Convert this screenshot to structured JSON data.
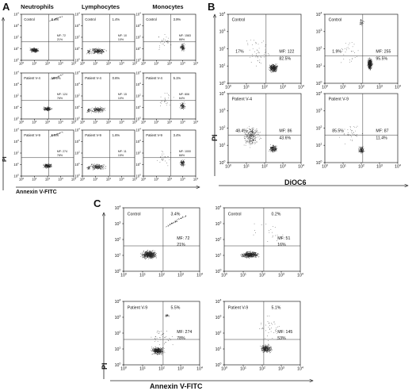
{
  "figure": {
    "panel_letters": [
      "A",
      "B",
      "C"
    ],
    "column_headers": [
      "Neutrophils",
      "Lymphocytes",
      "Monocytes"
    ],
    "axis": {
      "pi": "PI",
      "annexin": "Annexin V-FITC",
      "dioc6": "DiOC6",
      "exponents": [
        "0",
        "1",
        "2",
        "3",
        "4"
      ]
    },
    "A": {
      "rows": [
        {
          "label": "Control",
          "cells": [
            {
              "pct": "3.4%",
              "mf1": "MF: 72",
              "mf2": "21%"
            },
            {
              "pct": "1.4%",
              "mf1": "MF: 10",
              "mf2": "10%"
            },
            {
              "pct": "3.9%",
              "mf1": "MF: 1583",
              "mf2": "88%"
            }
          ]
        },
        {
          "label": "Patient V-4",
          "cells": [
            {
              "pct": "10.5%",
              "mf1": "MF: 124",
              "mf2": "76%"
            },
            {
              "pct": "0.6%",
              "mf1": "MF: 15",
              "mf2": "10%"
            },
            {
              "pct": "5.1%",
              "mf1": "MF: 806",
              "mf2": "64%"
            }
          ]
        },
        {
          "label": "Patient V-9",
          "cells": [
            {
              "pct": "5.5%",
              "mf1": "MF: 274",
              "mf2": "78%"
            },
            {
              "pct": "1.6%",
              "mf1": "MF: 11",
              "mf2": "15%"
            },
            {
              "pct": "3.4%",
              "mf1": "MF: 1000",
              "mf2": "66%"
            }
          ]
        }
      ]
    },
    "B": {
      "plots": [
        {
          "label": "Control",
          "left": "17%",
          "mf1": "MF: 122",
          "mf2": "82.5%"
        },
        {
          "label": "Control",
          "left": "1.9%",
          "mf1": "MF: 255",
          "mf2": "95.5%"
        },
        {
          "label": "Patient V-4",
          "left": "48.4%",
          "mf1": "MF: 86",
          "mf2": "43.6%"
        },
        {
          "label": "Patient V-9",
          "left": "85.5%",
          "mf1": "MF: 87",
          "mf2": "11.4%"
        }
      ]
    },
    "C": {
      "plots": [
        {
          "label": "Control",
          "pct": "3.4%",
          "mf1": "MF: 72",
          "mf2": "21%"
        },
        {
          "label": "Control",
          "pct": "0.2%",
          "mf1": "MF: 51",
          "mf2": "16%"
        },
        {
          "label": "Patient V-9",
          "pct": "5.5%",
          "mf1": "MF: 274",
          "mf2": "78%"
        },
        {
          "label": "Patient V-9",
          "pct": "5.1%",
          "mf1": "MF: 145",
          "mf2": "53%"
        }
      ]
    }
  }
}
